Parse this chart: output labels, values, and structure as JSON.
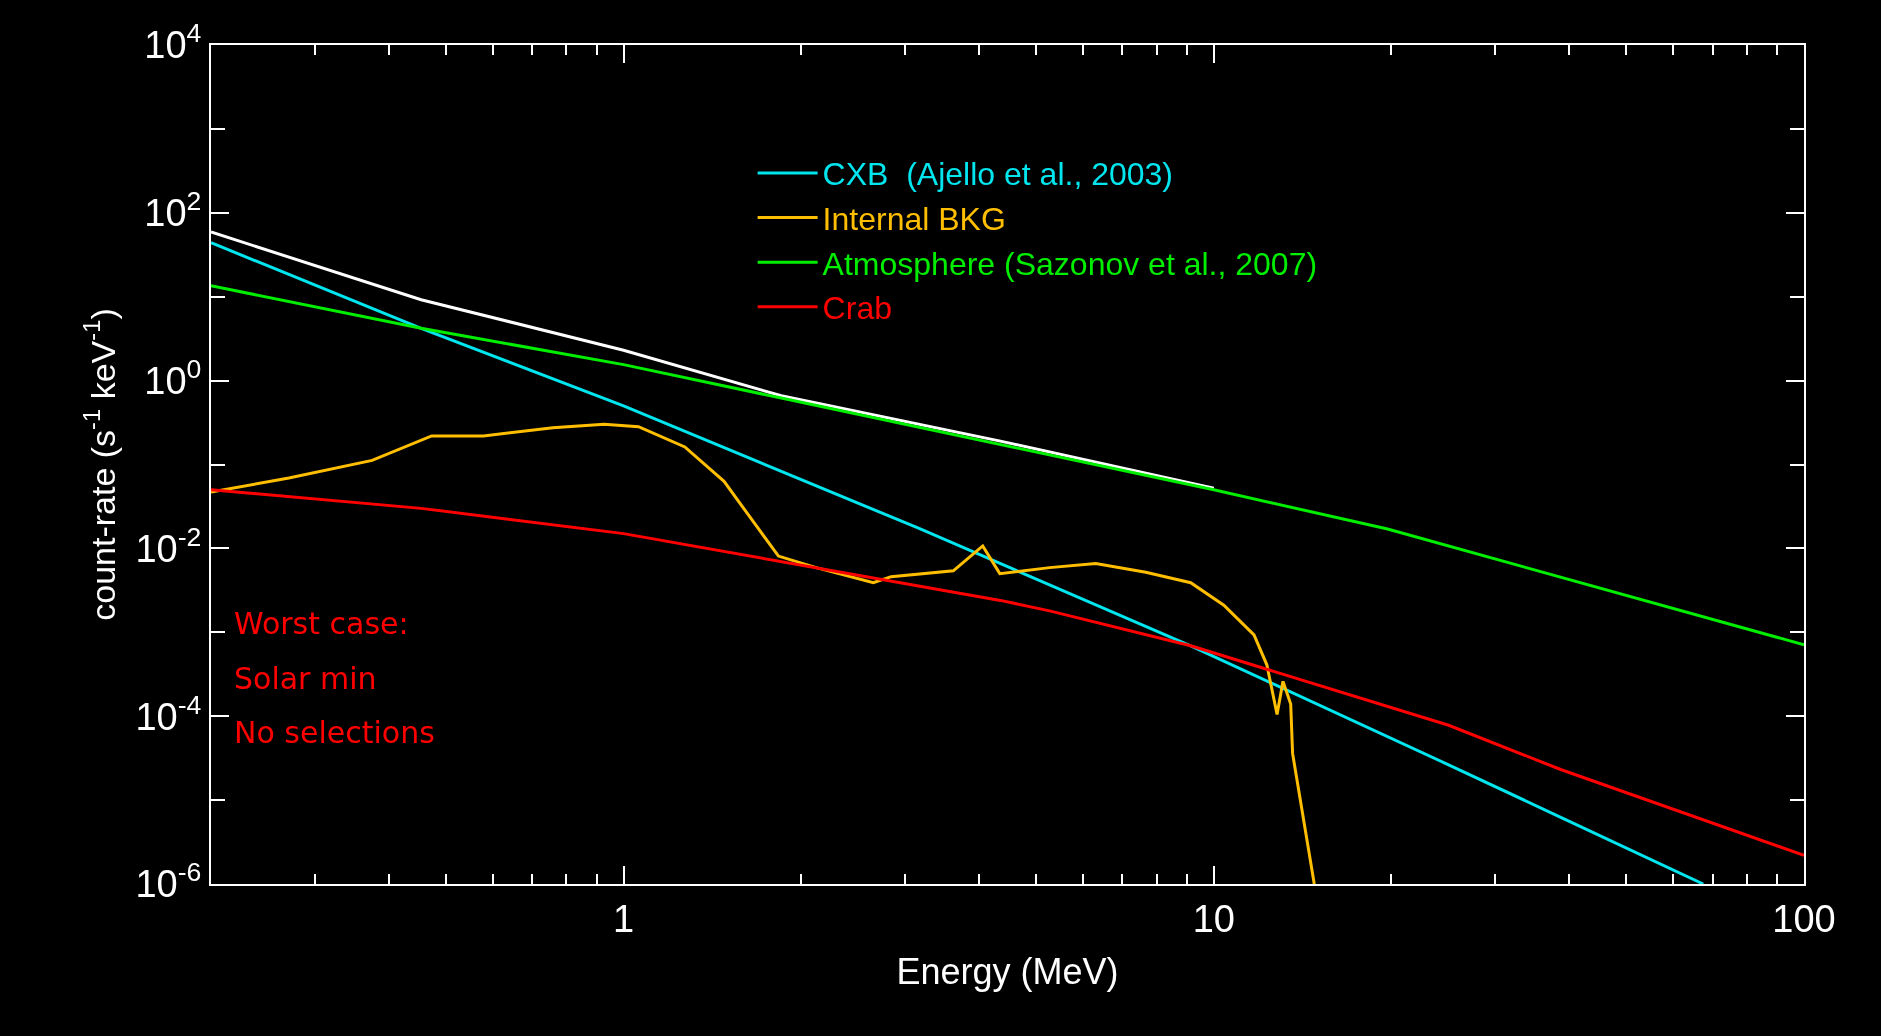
{
  "chart_data": {
    "type": "line",
    "xlabel": "Energy (MeV)",
    "ylabel": "count-rate (s$^{-1}$ keV$^{-1}$)",
    "log": "xy",
    "grid": false,
    "legend": "top right",
    "marker": "none",
    "line_style": "solid",
    "xlim": [
      0.2,
      100
    ],
    "ylim": [
      1e-06,
      10000
    ],
    "xticks": [
      {
        "value": 0.3,
        "label": null
      },
      {
        "value": 0.4,
        "label": null
      },
      {
        "value": 0.5,
        "label": null
      },
      {
        "value": 0.6,
        "label": null
      },
      {
        "value": 0.7,
        "label": null
      },
      {
        "value": 0.8,
        "label": null
      },
      {
        "value": 0.9,
        "label": null
      },
      1,
      {
        "value": 2,
        "label": null
      },
      {
        "value": 3,
        "label": null
      },
      {
        "value": 4,
        "label": null
      },
      {
        "value": 5,
        "label": null
      },
      {
        "value": 6,
        "label": null
      },
      {
        "value": 7,
        "label": null
      },
      {
        "value": 8,
        "label": null
      },
      {
        "value": 9,
        "label": null
      },
      10,
      {
        "value": 20,
        "label": null
      },
      {
        "value": 30,
        "label": null
      },
      {
        "value": 40,
        "label": null
      },
      {
        "value": 50,
        "label": null
      },
      {
        "value": 60,
        "label": null
      },
      {
        "value": 70,
        "label": null
      },
      {
        "value": 80,
        "label": null
      },
      {
        "value": 90,
        "label": null
      },
      100
    ],
    "yticks": [
      {
        "value": 1e-06,
        "label": "10$^{-6}$"
      },
      {
        "value": 1e-05,
        "label": null
      },
      {
        "value": 0.0001,
        "label": "10$^{-4}$"
      },
      {
        "value": 0.001,
        "label": null
      },
      {
        "value": 0.01,
        "label": "10$^{-2}$"
      },
      {
        "value": 0.1,
        "label": null
      },
      {
        "value": 1,
        "label": "10$^{0}$"
      },
      {
        "value": 10,
        "label": null
      },
      {
        "value": 100,
        "label": "10$^{2}$"
      },
      {
        "value": 1000,
        "label": null
      },
      {
        "value": 10000,
        "label": "10$^{4}$"
      }
    ],
    "annotations": [
      "Worst case:",
      "Solar min",
      "No selections"
    ],
    "series": [
      {
        "color": "#ffffff",
        "x": [
          0.2,
          0.454,
          1,
          1.85,
          4.35,
          10
        ],
        "values": [
          59,
          9.2,
          2.3,
          0.66,
          0.19,
          0.052
        ]
      },
      {
        "name": "CXB  (Ajello et al., 2003)",
        "color": "#00e5ee",
        "x": [
          0.2,
          0.454,
          1,
          3.16,
          9.14,
          25.1,
          38.8,
          67.5
        ],
        "values": [
          44,
          4.2,
          0.5,
          0.0174,
          0.00069,
          2.6e-05,
          6.2e-06,
          1e-06
        ]
      },
      {
        "name": "Internal BKG",
        "color": "#ffbf00",
        "x": [
          0.2,
          0.271,
          0.375,
          0.473,
          0.579,
          0.759,
          0.927,
          1.06,
          1.27,
          1.48,
          1.69,
          1.83,
          2.12,
          2.65,
          2.84,
          3.62,
          4.06,
          4.34,
          5.27,
          6.31,
          7.67,
          9.14,
          10.4,
          11.7,
          12.3,
          12.8,
          13.1,
          13.5,
          13.6,
          14.8
        ],
        "values": [
          0.047,
          0.069,
          0.112,
          0.219,
          0.219,
          0.275,
          0.302,
          0.282,
          0.162,
          0.063,
          0.0174,
          0.0081,
          0.0059,
          0.0039,
          0.0046,
          0.0054,
          0.0107,
          0.005,
          0.0059,
          0.0066,
          0.0052,
          0.0039,
          0.0021,
          0.00093,
          0.00041,
          0.000105,
          0.00026,
          0.00014,
          3.6e-05,
          1e-06
        ]
      },
      {
        "name": "Atmosphere (Sazonov et al., 2007)",
        "color": "#00ee00",
        "x": [
          0.2,
          0.454,
          1,
          1.85,
          10,
          19.7,
          100
        ],
        "values": [
          13.5,
          4.2,
          1.55,
          0.62,
          0.05,
          0.017,
          0.00071
        ]
      },
      {
        "name": "Crab",
        "color": "#ff0000",
        "x": [
          0.2,
          0.454,
          1,
          4.35,
          5.27,
          9.14,
          25,
          38.8,
          100
        ],
        "values": [
          0.05,
          0.03,
          0.015,
          0.0024,
          0.0018,
          0.00069,
          7.8e-05,
          2.3e-05,
          2.2e-06
        ]
      }
    ]
  }
}
